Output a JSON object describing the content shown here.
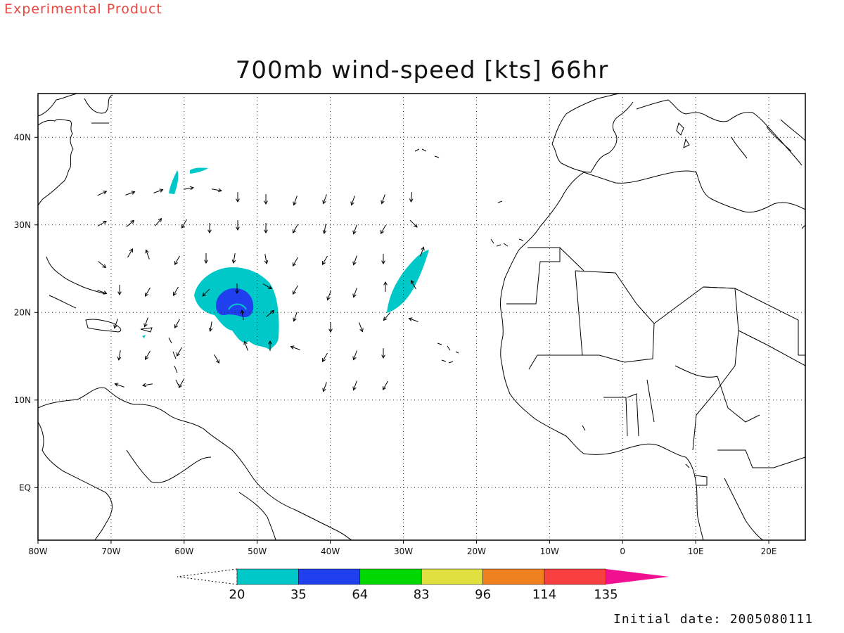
{
  "header": {
    "product_label": "Experimental Product",
    "title": "700mb wind-speed [kts] 66hr",
    "initial_date": "Initial date: 2005080111"
  },
  "map": {
    "lon_range": [
      -80,
      25
    ],
    "lat_range": [
      -6,
      45
    ],
    "lon_ticks": [
      "80W",
      "70W",
      "60W",
      "50W",
      "40W",
      "30W",
      "20W",
      "10W",
      "0",
      "10E",
      "20E"
    ],
    "lat_ticks": [
      "40N",
      "30N",
      "20N",
      "10N",
      "EQ"
    ],
    "grid": "dotted",
    "colors": {
      "coast": "#000000",
      "ws_20_35": "#00c8c8",
      "ws_35_64": "#2040f0",
      "ws_64_83": "#00d800",
      "ws_83_96": "#e0e040",
      "ws_96_114": "#f08020",
      "ws_114_135": "#f84040",
      "ws_135_plus": "#f01090"
    }
  },
  "colorbar": {
    "ticks": [
      "20",
      "35",
      "64",
      "83",
      "96",
      "114",
      "135"
    ],
    "colors": [
      "#00c8c8",
      "#2040f0",
      "#00d800",
      "#e0e040",
      "#f08020",
      "#f84040",
      "#f01090"
    ]
  }
}
